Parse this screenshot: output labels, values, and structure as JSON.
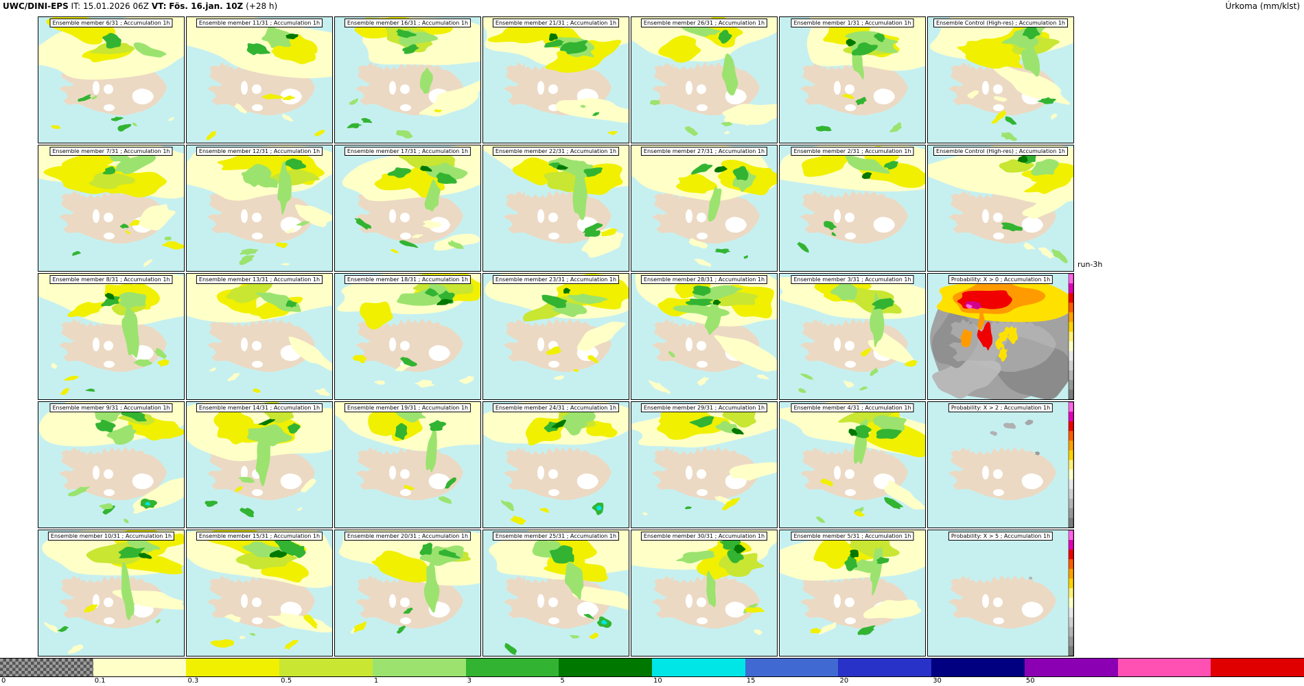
{
  "header": {
    "model": "UWC/DINI-EPS",
    "init_label": "IT:",
    "init_time": "15.01.2026 06Z",
    "valid_label": "VT:",
    "valid_time": "Fös. 16.jan. 10Z",
    "lead_time": "(+28 h)",
    "parameter": "Úrkoma (mm/klst)"
  },
  "run_label": "run-3h",
  "panels": [
    {
      "title": "Ensemble member 6/31 ; Accumulation 1h",
      "kind": "member"
    },
    {
      "title": "Ensemble member 11/31 ; Accumulation 1h",
      "kind": "member"
    },
    {
      "title": "Ensemble member 16/31 ; Accumulation 1h",
      "kind": "member"
    },
    {
      "title": "Ensemble member 21/31 ; Accumulation 1h",
      "kind": "member"
    },
    {
      "title": "Ensemble member 26/31 ; Accumulation 1h",
      "kind": "member"
    },
    {
      "title": "Ensemble member 1/31 ; Accumulation 1h",
      "kind": "member"
    },
    {
      "title": "Ensemble Control (High-res) ; Accumulation 1h",
      "kind": "control"
    },
    {
      "title": "Ensemble member 7/31 ; Accumulation 1h",
      "kind": "member"
    },
    {
      "title": "Ensemble member 12/31 ; Accumulation 1h",
      "kind": "member"
    },
    {
      "title": "Ensemble member 17/31 ; Accumulation 1h",
      "kind": "member"
    },
    {
      "title": "Ensemble member 22/31 ; Accumulation 1h",
      "kind": "member"
    },
    {
      "title": "Ensemble member 27/31 ; Accumulation 1h",
      "kind": "member"
    },
    {
      "title": "Ensemble member 2/31 ; Accumulation 1h",
      "kind": "member"
    },
    {
      "title": "Ensemble Control (High-res) ; Accumulation 1h",
      "kind": "control"
    },
    {
      "title": "Ensemble member 8/31 ; Accumulation 1h",
      "kind": "member"
    },
    {
      "title": "Ensemble member 13/31 ; Accumulation 1h",
      "kind": "member"
    },
    {
      "title": "Ensemble member 18/31 ; Accumulation 1h",
      "kind": "member"
    },
    {
      "title": "Ensemble member 23/31 ; Accumulation 1h",
      "kind": "member"
    },
    {
      "title": "Ensemble member 28/31 ; Accumulation 1h",
      "kind": "member"
    },
    {
      "title": "Ensemble member 3/31 ; Accumulation 1h",
      "kind": "member"
    },
    {
      "title": "Probability: X > 0 ; Accumulation 1h",
      "kind": "prob0"
    },
    {
      "title": "Ensemble member 9/31 ; Accumulation 1h",
      "kind": "member"
    },
    {
      "title": "Ensemble member 14/31 ; Accumulation 1h",
      "kind": "member"
    },
    {
      "title": "Ensemble member 19/31 ; Accumulation 1h",
      "kind": "member"
    },
    {
      "title": "Ensemble member 24/31 ; Accumulation 1h",
      "kind": "member"
    },
    {
      "title": "Ensemble member 29/31 ; Accumulation 1h",
      "kind": "member"
    },
    {
      "title": "Ensemble member 4/31 ; Accumulation 1h",
      "kind": "member"
    },
    {
      "title": "Probability: X > 2 ; Accumulation 1h",
      "kind": "prob2"
    },
    {
      "title": "Ensemble member 10/31 ; Accumulation 1h",
      "kind": "member"
    },
    {
      "title": "Ensemble member 15/31 ; Accumulation 1h",
      "kind": "member"
    },
    {
      "title": "Ensemble member 20/31 ; Accumulation 1h",
      "kind": "member"
    },
    {
      "title": "Ensemble member 25/31 ; Accumulation 1h",
      "kind": "member"
    },
    {
      "title": "Ensemble member 30/31 ; Accumulation 1h",
      "kind": "member"
    },
    {
      "title": "Ensemble member 5/31 ; Accumulation 1h",
      "kind": "member"
    },
    {
      "title": "Probability: X > 5 ; Accumulation 1h",
      "kind": "prob5"
    }
  ],
  "colorbar": {
    "segments": [
      {
        "label": "0",
        "color": "checkered"
      },
      {
        "label": "0.1",
        "color": "#ffffc8"
      },
      {
        "label": "0.3",
        "color": "#f0f000"
      },
      {
        "label": "0.5",
        "color": "#c8e632"
      },
      {
        "label": "1",
        "color": "#9be36e"
      },
      {
        "label": "3",
        "color": "#32b432"
      },
      {
        "label": "5",
        "color": "#007800"
      },
      {
        "label": "10",
        "color": "#00e6e6"
      },
      {
        "label": "15",
        "color": "#4169d2"
      },
      {
        "label": "20",
        "color": "#2832c8"
      },
      {
        "label": "30",
        "color": "#000080"
      },
      {
        "label": "50",
        "color": "#8c00b4"
      },
      {
        "label": "",
        "color": "#ff50b4"
      },
      {
        "label": "",
        "color": "#e10000"
      }
    ]
  },
  "map_colors": {
    "ocean": "#c6f0f0",
    "land": "#ecd9c3",
    "glacier": "#ffffff",
    "p01": "#ffffc8",
    "p03": "#f0f000",
    "p05": "#c8e632",
    "p1": "#9be36e",
    "p3": "#32b432",
    "p5": "#007800",
    "p10": "#00e6e6",
    "prob_y": "#ffe100",
    "prob_o": "#ff9b00",
    "prob_r": "#f00000",
    "prob_m": "#d2008c",
    "prob_p": "#ff64e6",
    "prob_scale": [
      "#ff64e6",
      "#e100b4",
      "#f00000",
      "#ff5a00",
      "#ffa000",
      "#ffd200",
      "#fff078",
      "#ffffc8",
      "#e8e8e8",
      "#cfcfcf",
      "#b4b4b4",
      "#989898",
      "#7c7c7c"
    ]
  }
}
